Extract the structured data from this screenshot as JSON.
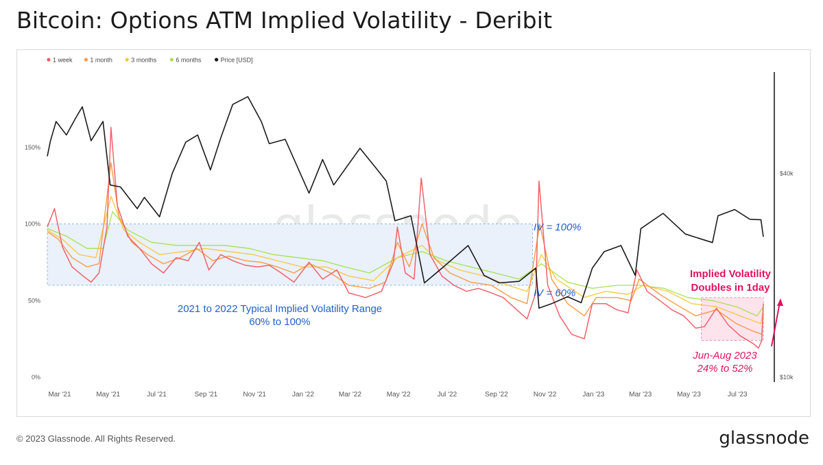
{
  "header": {
    "title": "Bitcoin: Options ATM Implied Volatility - Deribit"
  },
  "footer": {
    "copyright": "© 2023 Glassnode. All Rights Reserved.",
    "brand": "glassnode"
  },
  "watermark": "glassnode",
  "colors": {
    "w1": "#f0616a",
    "m1": "#f99a45",
    "m3": "#f6c83c",
    "m6": "#a6e14d",
    "price": "#1a1a1a",
    "band_fill": "#eaf1fb",
    "band_stroke": "#8ab2e6",
    "blue_text": "#1f5fc7",
    "pink": "#e0125b",
    "pink_fill": "#fde3ec"
  },
  "chart_data": {
    "type": "line",
    "x_ticks": [
      "Mar '21",
      "May '21",
      "Jul '21",
      "Sep '21",
      "Nov '21",
      "Jan '22",
      "Mar '22",
      "May '22",
      "Jul '22",
      "Sep '22",
      "Nov '22",
      "Jan '23",
      "Mar '23",
      "May '23",
      "Jul '23"
    ],
    "y_left_ticks": [
      "0%",
      "50%",
      "100%",
      "150%"
    ],
    "y_left_range": [
      0,
      150
    ],
    "y_right_ticks": [
      "$10k",
      "$40k"
    ],
    "y_right_scale": "log",
    "legend": [
      {
        "key": "w1",
        "label": "1 week"
      },
      {
        "key": "m1",
        "label": "1 month"
      },
      {
        "key": "m3",
        "label": "3 months"
      },
      {
        "key": "m6",
        "label": "6 months"
      },
      {
        "key": "price",
        "label": "Price [USD]"
      }
    ],
    "x_domain": [
      "2021-03-01",
      "2023-08-18"
    ],
    "series": [
      {
        "name": "1 week",
        "key": "w1",
        "points": [
          [
            "2021-03-01",
            98
          ],
          [
            "2021-03-10",
            110
          ],
          [
            "2021-03-20",
            85
          ],
          [
            "2021-04-01",
            72
          ],
          [
            "2021-04-15",
            66
          ],
          [
            "2021-04-25",
            62
          ],
          [
            "2021-05-05",
            68
          ],
          [
            "2021-05-15",
            98
          ],
          [
            "2021-05-20",
            163
          ],
          [
            "2021-05-28",
            112
          ],
          [
            "2021-06-10",
            92
          ],
          [
            "2021-06-25",
            84
          ],
          [
            "2021-07-10",
            74
          ],
          [
            "2021-07-25",
            68
          ],
          [
            "2021-08-10",
            78
          ],
          [
            "2021-08-25",
            76
          ],
          [
            "2021-09-08",
            88
          ],
          [
            "2021-09-20",
            70
          ],
          [
            "2021-10-05",
            80
          ],
          [
            "2021-10-20",
            76
          ],
          [
            "2021-11-05",
            73
          ],
          [
            "2021-11-20",
            72
          ],
          [
            "2021-12-05",
            73
          ],
          [
            "2021-12-20",
            68
          ],
          [
            "2022-01-05",
            62
          ],
          [
            "2022-01-24",
            75
          ],
          [
            "2022-02-10",
            64
          ],
          [
            "2022-02-28",
            70
          ],
          [
            "2022-03-15",
            55
          ],
          [
            "2022-04-05",
            52
          ],
          [
            "2022-04-25",
            56
          ],
          [
            "2022-05-10",
            75
          ],
          [
            "2022-05-15",
            98
          ],
          [
            "2022-05-25",
            68
          ],
          [
            "2022-06-05",
            64
          ],
          [
            "2022-06-14",
            130
          ],
          [
            "2022-06-25",
            80
          ],
          [
            "2022-07-10",
            66
          ],
          [
            "2022-07-25",
            60
          ],
          [
            "2022-08-10",
            56
          ],
          [
            "2022-08-25",
            58
          ],
          [
            "2022-09-10",
            55
          ],
          [
            "2022-09-25",
            52
          ],
          [
            "2022-10-10",
            45
          ],
          [
            "2022-10-25",
            38
          ],
          [
            "2022-11-05",
            55
          ],
          [
            "2022-11-09",
            128
          ],
          [
            "2022-11-20",
            60
          ],
          [
            "2022-12-05",
            40
          ],
          [
            "2022-12-20",
            28
          ],
          [
            "2023-01-05",
            25
          ],
          [
            "2023-01-15",
            48
          ],
          [
            "2023-02-01",
            48
          ],
          [
            "2023-02-15",
            44
          ],
          [
            "2023-03-01",
            42
          ],
          [
            "2023-03-12",
            70
          ],
          [
            "2023-03-25",
            56
          ],
          [
            "2023-04-10",
            50
          ],
          [
            "2023-04-25",
            44
          ],
          [
            "2023-05-10",
            40
          ],
          [
            "2023-05-25",
            32
          ],
          [
            "2023-06-05",
            33
          ],
          [
            "2023-06-20",
            45
          ],
          [
            "2023-07-05",
            34
          ],
          [
            "2023-07-20",
            27
          ],
          [
            "2023-08-05",
            22
          ],
          [
            "2023-08-12",
            19
          ],
          [
            "2023-08-16",
            24
          ],
          [
            "2023-08-18",
            48
          ]
        ]
      },
      {
        "name": "1 month",
        "key": "m1",
        "points": [
          [
            "2021-03-01",
            95
          ],
          [
            "2021-03-15",
            90
          ],
          [
            "2021-04-01",
            78
          ],
          [
            "2021-04-20",
            72
          ],
          [
            "2021-05-05",
            74
          ],
          [
            "2021-05-20",
            140
          ],
          [
            "2021-05-30",
            105
          ],
          [
            "2021-06-15",
            88
          ],
          [
            "2021-07-05",
            80
          ],
          [
            "2021-07-25",
            74
          ],
          [
            "2021-08-15",
            78
          ],
          [
            "2021-09-05",
            84
          ],
          [
            "2021-09-25",
            76
          ],
          [
            "2021-10-15",
            79
          ],
          [
            "2021-11-05",
            76
          ],
          [
            "2021-11-25",
            75
          ],
          [
            "2021-12-15",
            72
          ],
          [
            "2022-01-05",
            68
          ],
          [
            "2022-01-25",
            74
          ],
          [
            "2022-02-20",
            68
          ],
          [
            "2022-03-15",
            60
          ],
          [
            "2022-04-10",
            58
          ],
          [
            "2022-04-30",
            62
          ],
          [
            "2022-05-15",
            88
          ],
          [
            "2022-05-30",
            72
          ],
          [
            "2022-06-15",
            100
          ],
          [
            "2022-06-30",
            78
          ],
          [
            "2022-07-20",
            68
          ],
          [
            "2022-08-15",
            62
          ],
          [
            "2022-09-10",
            60
          ],
          [
            "2022-10-05",
            52
          ],
          [
            "2022-10-25",
            48
          ],
          [
            "2022-11-10",
            100
          ],
          [
            "2022-11-25",
            64
          ],
          [
            "2022-12-15",
            48
          ],
          [
            "2023-01-05",
            40
          ],
          [
            "2023-01-20",
            52
          ],
          [
            "2023-02-15",
            52
          ],
          [
            "2023-03-05",
            50
          ],
          [
            "2023-03-15",
            64
          ],
          [
            "2023-04-10",
            54
          ],
          [
            "2023-05-05",
            46
          ],
          [
            "2023-05-25",
            40
          ],
          [
            "2023-06-20",
            44
          ],
          [
            "2023-07-15",
            35
          ],
          [
            "2023-08-05",
            30
          ],
          [
            "2023-08-16",
            28
          ],
          [
            "2023-08-18",
            42
          ]
        ]
      },
      {
        "name": "3 months",
        "key": "m3",
        "points": [
          [
            "2021-03-01",
            96
          ],
          [
            "2021-03-20",
            90
          ],
          [
            "2021-04-10",
            80
          ],
          [
            "2021-05-01",
            78
          ],
          [
            "2021-05-20",
            118
          ],
          [
            "2021-06-05",
            96
          ],
          [
            "2021-06-25",
            88
          ],
          [
            "2021-07-20",
            80
          ],
          [
            "2021-08-20",
            82
          ],
          [
            "2021-09-15",
            84
          ],
          [
            "2021-10-15",
            82
          ],
          [
            "2021-11-15",
            80
          ],
          [
            "2021-12-15",
            76
          ],
          [
            "2022-01-15",
            72
          ],
          [
            "2022-02-15",
            72
          ],
          [
            "2022-03-15",
            66
          ],
          [
            "2022-04-15",
            63
          ],
          [
            "2022-05-15",
            78
          ],
          [
            "2022-06-15",
            86
          ],
          [
            "2022-07-05",
            76
          ],
          [
            "2022-08-01",
            70
          ],
          [
            "2022-09-01",
            66
          ],
          [
            "2022-10-01",
            60
          ],
          [
            "2022-10-25",
            56
          ],
          [
            "2022-11-12",
            80
          ],
          [
            "2022-12-01",
            64
          ],
          [
            "2023-01-05",
            52
          ],
          [
            "2023-02-01",
            56
          ],
          [
            "2023-03-01",
            54
          ],
          [
            "2023-03-20",
            60
          ],
          [
            "2023-04-20",
            56
          ],
          [
            "2023-05-20",
            48
          ],
          [
            "2023-06-20",
            46
          ],
          [
            "2023-07-20",
            40
          ],
          [
            "2023-08-15",
            35
          ],
          [
            "2023-08-18",
            44
          ]
        ]
      },
      {
        "name": "6 months",
        "key": "m6",
        "points": [
          [
            "2021-03-01",
            97
          ],
          [
            "2021-03-25",
            92
          ],
          [
            "2021-04-20",
            84
          ],
          [
            "2021-05-10",
            84
          ],
          [
            "2021-05-22",
            108
          ],
          [
            "2021-06-10",
            96
          ],
          [
            "2021-07-10",
            88
          ],
          [
            "2021-08-10",
            86
          ],
          [
            "2021-09-10",
            86
          ],
          [
            "2021-10-10",
            86
          ],
          [
            "2021-11-10",
            84
          ],
          [
            "2021-12-10",
            80
          ],
          [
            "2022-01-10",
            78
          ],
          [
            "2022-02-10",
            76
          ],
          [
            "2022-03-10",
            72
          ],
          [
            "2022-04-10",
            68
          ],
          [
            "2022-05-15",
            78
          ],
          [
            "2022-06-15",
            82
          ],
          [
            "2022-07-15",
            76
          ],
          [
            "2022-08-15",
            72
          ],
          [
            "2022-09-15",
            68
          ],
          [
            "2022-10-15",
            64
          ],
          [
            "2022-11-12",
            74
          ],
          [
            "2022-12-15",
            62
          ],
          [
            "2023-01-15",
            58
          ],
          [
            "2023-02-15",
            60
          ],
          [
            "2023-03-15",
            60
          ],
          [
            "2023-04-15",
            58
          ],
          [
            "2023-05-15",
            52
          ],
          [
            "2023-06-15",
            50
          ],
          [
            "2023-07-15",
            46
          ],
          [
            "2023-08-10",
            40
          ],
          [
            "2023-08-18",
            46
          ]
        ]
      },
      {
        "name": "Price [USD]",
        "key": "price",
        "points": [
          [
            "2021-03-01",
            45000
          ],
          [
            "2021-03-05",
            50000
          ],
          [
            "2021-03-12",
            57000
          ],
          [
            "2021-03-25",
            52000
          ],
          [
            "2021-04-05",
            58000
          ],
          [
            "2021-04-14",
            63000
          ],
          [
            "2021-04-25",
            50000
          ],
          [
            "2021-05-10",
            57000
          ],
          [
            "2021-05-19",
            37000
          ],
          [
            "2021-06-01",
            36500
          ],
          [
            "2021-06-22",
            31500
          ],
          [
            "2021-07-01",
            34000
          ],
          [
            "2021-07-20",
            29800
          ],
          [
            "2021-08-05",
            40000
          ],
          [
            "2021-08-22",
            49500
          ],
          [
            "2021-09-06",
            52000
          ],
          [
            "2021-09-22",
            41000
          ],
          [
            "2021-10-05",
            51000
          ],
          [
            "2021-10-20",
            64000
          ],
          [
            "2021-11-08",
            67500
          ],
          [
            "2021-11-25",
            57000
          ],
          [
            "2021-12-05",
            49000
          ],
          [
            "2021-12-25",
            50500
          ],
          [
            "2022-01-10",
            41500
          ],
          [
            "2022-01-24",
            35000
          ],
          [
            "2022-02-10",
            44000
          ],
          [
            "2022-02-24",
            37000
          ],
          [
            "2022-03-29",
            47500
          ],
          [
            "2022-04-20",
            41000
          ],
          [
            "2022-05-01",
            38000
          ],
          [
            "2022-05-12",
            29000
          ],
          [
            "2022-06-01",
            30000
          ],
          [
            "2022-06-18",
            19000
          ],
          [
            "2022-07-10",
            21000
          ],
          [
            "2022-08-12",
            24500
          ],
          [
            "2022-09-01",
            20000
          ],
          [
            "2022-09-20",
            19000
          ],
          [
            "2022-10-15",
            19200
          ],
          [
            "2022-11-05",
            21000
          ],
          [
            "2022-11-09",
            16000
          ],
          [
            "2022-11-25",
            16500
          ],
          [
            "2022-12-15",
            17300
          ],
          [
            "2023-01-01",
            16600
          ],
          [
            "2023-01-15",
            21000
          ],
          [
            "2023-01-30",
            23500
          ],
          [
            "2023-02-20",
            24500
          ],
          [
            "2023-03-10",
            20000
          ],
          [
            "2023-03-17",
            27500
          ],
          [
            "2023-04-14",
            30500
          ],
          [
            "2023-05-12",
            26500
          ],
          [
            "2023-06-15",
            25000
          ],
          [
            "2023-06-22",
            30000
          ],
          [
            "2023-07-13",
            31300
          ],
          [
            "2023-08-01",
            29300
          ],
          [
            "2023-08-15",
            29200
          ],
          [
            "2023-08-18",
            26000
          ]
        ]
      }
    ],
    "annotations": {
      "band_label_1": "2021 to 2022 Typical Implied Volatility Range",
      "band_label_2": "60% to 100%",
      "iv100": "IV = 100%",
      "iv60": "IV = 60%",
      "jump_1": "Implied Volatility",
      "jump_2": "Doubles in 1day",
      "summer_1": "Jun-Aug 2023",
      "summer_2": "24% to 52%"
    }
  }
}
